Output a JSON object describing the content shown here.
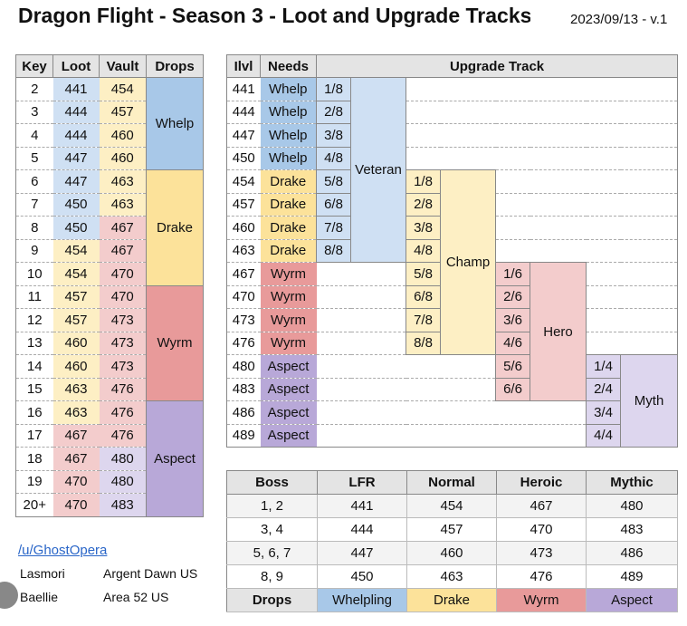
{
  "header": {
    "title": "Dragon Flight - Season 3 - Loot and Upgrade Tracks",
    "date": "2023/09/13 - v.1"
  },
  "key_table": {
    "headers": [
      "Key",
      "Loot",
      "Vault",
      "Drops"
    ],
    "rows": [
      {
        "key": "2",
        "loot": "441",
        "vault": "454"
      },
      {
        "key": "3",
        "loot": "444",
        "vault": "457"
      },
      {
        "key": "4",
        "loot": "444",
        "vault": "460"
      },
      {
        "key": "5",
        "loot": "447",
        "vault": "460"
      },
      {
        "key": "6",
        "loot": "447",
        "vault": "463"
      },
      {
        "key": "7",
        "loot": "450",
        "vault": "463"
      },
      {
        "key": "8",
        "loot": "450",
        "vault": "467"
      },
      {
        "key": "9",
        "loot": "454",
        "vault": "467"
      },
      {
        "key": "10",
        "loot": "454",
        "vault": "470"
      },
      {
        "key": "11",
        "loot": "457",
        "vault": "470"
      },
      {
        "key": "12",
        "loot": "457",
        "vault": "473"
      },
      {
        "key": "13",
        "loot": "460",
        "vault": "473"
      },
      {
        "key": "14",
        "loot": "460",
        "vault": "473"
      },
      {
        "key": "15",
        "loot": "463",
        "vault": "476"
      },
      {
        "key": "16",
        "loot": "463",
        "vault": "476"
      },
      {
        "key": "17",
        "loot": "467",
        "vault": "476"
      },
      {
        "key": "18",
        "loot": "467",
        "vault": "480"
      },
      {
        "key": "19",
        "loot": "470",
        "vault": "480"
      },
      {
        "key": "20+",
        "loot": "470",
        "vault": "483"
      }
    ],
    "drops": [
      "Whelp",
      "Drake",
      "Wyrm",
      "Aspect"
    ]
  },
  "track_table": {
    "headers": [
      "Ilvl",
      "Needs",
      "Upgrade Track"
    ],
    "rows": [
      {
        "ilvl": "441",
        "needs": "Whelp"
      },
      {
        "ilvl": "444",
        "needs": "Whelp"
      },
      {
        "ilvl": "447",
        "needs": "Whelp"
      },
      {
        "ilvl": "450",
        "needs": "Whelp"
      },
      {
        "ilvl": "454",
        "needs": "Drake"
      },
      {
        "ilvl": "457",
        "needs": "Drake"
      },
      {
        "ilvl": "460",
        "needs": "Drake"
      },
      {
        "ilvl": "463",
        "needs": "Drake"
      },
      {
        "ilvl": "467",
        "needs": "Wyrm"
      },
      {
        "ilvl": "470",
        "needs": "Wyrm"
      },
      {
        "ilvl": "473",
        "needs": "Wyrm"
      },
      {
        "ilvl": "476",
        "needs": "Wyrm"
      },
      {
        "ilvl": "480",
        "needs": "Aspect"
      },
      {
        "ilvl": "483",
        "needs": "Aspect"
      },
      {
        "ilvl": "486",
        "needs": "Aspect"
      },
      {
        "ilvl": "489",
        "needs": "Aspect"
      }
    ],
    "tracks": {
      "veteran": {
        "name": "Veteran",
        "steps": [
          "1/8",
          "2/8",
          "3/8",
          "4/8",
          "5/8",
          "6/8",
          "7/8",
          "8/8"
        ]
      },
      "champ": {
        "name": "Champ",
        "steps": [
          "1/8",
          "2/8",
          "3/8",
          "4/8",
          "5/8",
          "6/8",
          "7/8",
          "8/8"
        ]
      },
      "hero": {
        "name": "Hero",
        "steps": [
          "1/6",
          "2/6",
          "3/6",
          "4/6",
          "5/6",
          "6/6"
        ]
      },
      "myth": {
        "name": "Myth",
        "steps": [
          "1/4",
          "2/4",
          "3/4",
          "4/4"
        ]
      }
    }
  },
  "boss_table": {
    "headers": [
      "Boss",
      "LFR",
      "Normal",
      "Heroic",
      "Mythic"
    ],
    "rows": [
      {
        "boss": "1, 2",
        "lfr": "441",
        "normal": "454",
        "heroic": "467",
        "mythic": "480"
      },
      {
        "boss": "3, 4",
        "lfr": "444",
        "normal": "457",
        "heroic": "470",
        "mythic": "483"
      },
      {
        "boss": "5, 6, 7",
        "lfr": "447",
        "normal": "460",
        "heroic": "473",
        "mythic": "486"
      },
      {
        "boss": "8, 9",
        "lfr": "450",
        "normal": "463",
        "heroic": "476",
        "mythic": "489"
      }
    ],
    "drops_label": "Drops",
    "drops": [
      "Whelpling",
      "Drake",
      "Wyrm",
      "Aspect"
    ]
  },
  "footer": {
    "link": "/u/GhostOpera",
    "credits": [
      {
        "name": "Lasmori",
        "server": "Argent Dawn US"
      },
      {
        "name": "Baellie",
        "server": "Area 52 US"
      }
    ]
  },
  "colors": {
    "whelp": "#a8c8e8",
    "drake": "#fce29a",
    "wyrm": "#e89a9a",
    "aspect": "#b8a8d8"
  }
}
